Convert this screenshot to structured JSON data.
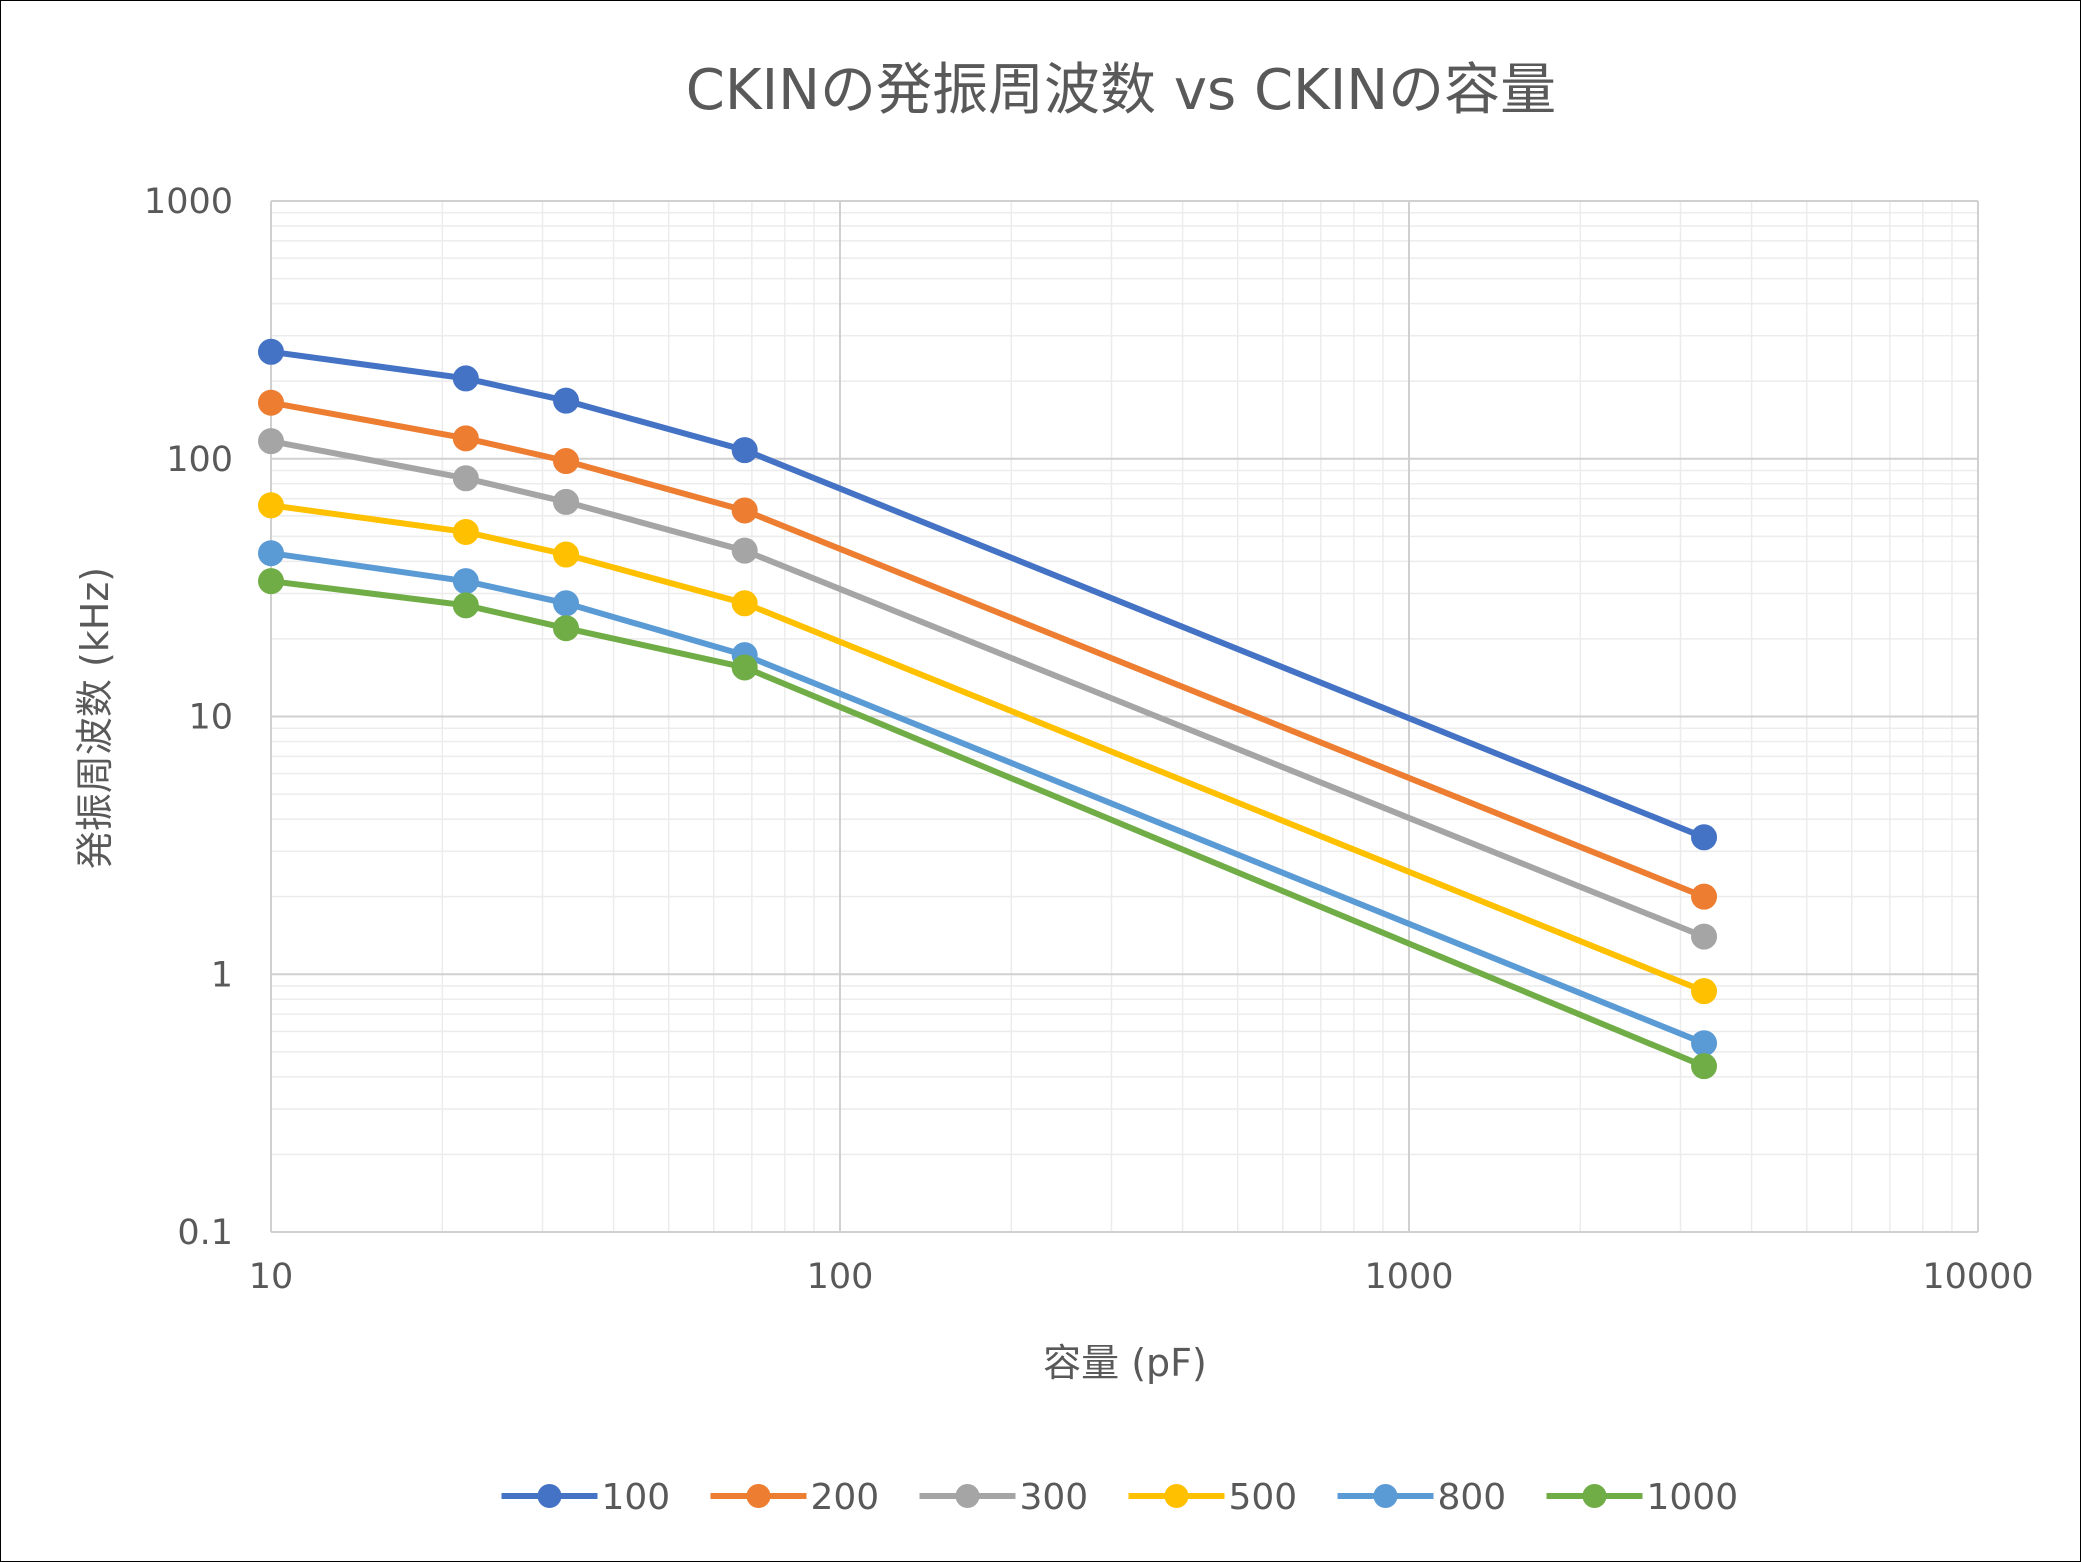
{
  "chart_data": {
    "type": "line",
    "title": "CKINの発振周波数 vs CKINの容量",
    "xlabel": "容量 (pF)",
    "ylabel": "発振周波数 (kHz)",
    "xscale": "log",
    "yscale": "log",
    "xlim": [
      10,
      10000
    ],
    "ylim": [
      0.1,
      1000
    ],
    "x_ticks": [
      "10",
      "100",
      "1000",
      "10000"
    ],
    "y_ticks": [
      "0.1",
      "1",
      "10",
      "100",
      "1000"
    ],
    "grid": true,
    "legend_position": "bottom",
    "x": [
      10,
      22,
      33,
      68,
      3300
    ],
    "series": [
      {
        "name": "100",
        "color": "#4472C4",
        "values": [
          260,
          205,
          168,
          108,
          3.4
        ]
      },
      {
        "name": "200",
        "color": "#ED7D31",
        "values": [
          165,
          120,
          98,
          63,
          2.0
        ]
      },
      {
        "name": "300",
        "color": "#A5A5A5",
        "values": [
          117,
          84,
          68,
          44,
          1.4
        ]
      },
      {
        "name": "500",
        "color": "#FFC000",
        "values": [
          66,
          52,
          42.5,
          27.5,
          0.86
        ]
      },
      {
        "name": "800",
        "color": "#5B9BD5",
        "values": [
          43,
          33.5,
          27.5,
          17.3,
          0.54
        ]
      },
      {
        "name": "1000",
        "color": "#70AD47",
        "values": [
          33.5,
          27,
          22,
          15.5,
          0.44
        ]
      }
    ]
  }
}
